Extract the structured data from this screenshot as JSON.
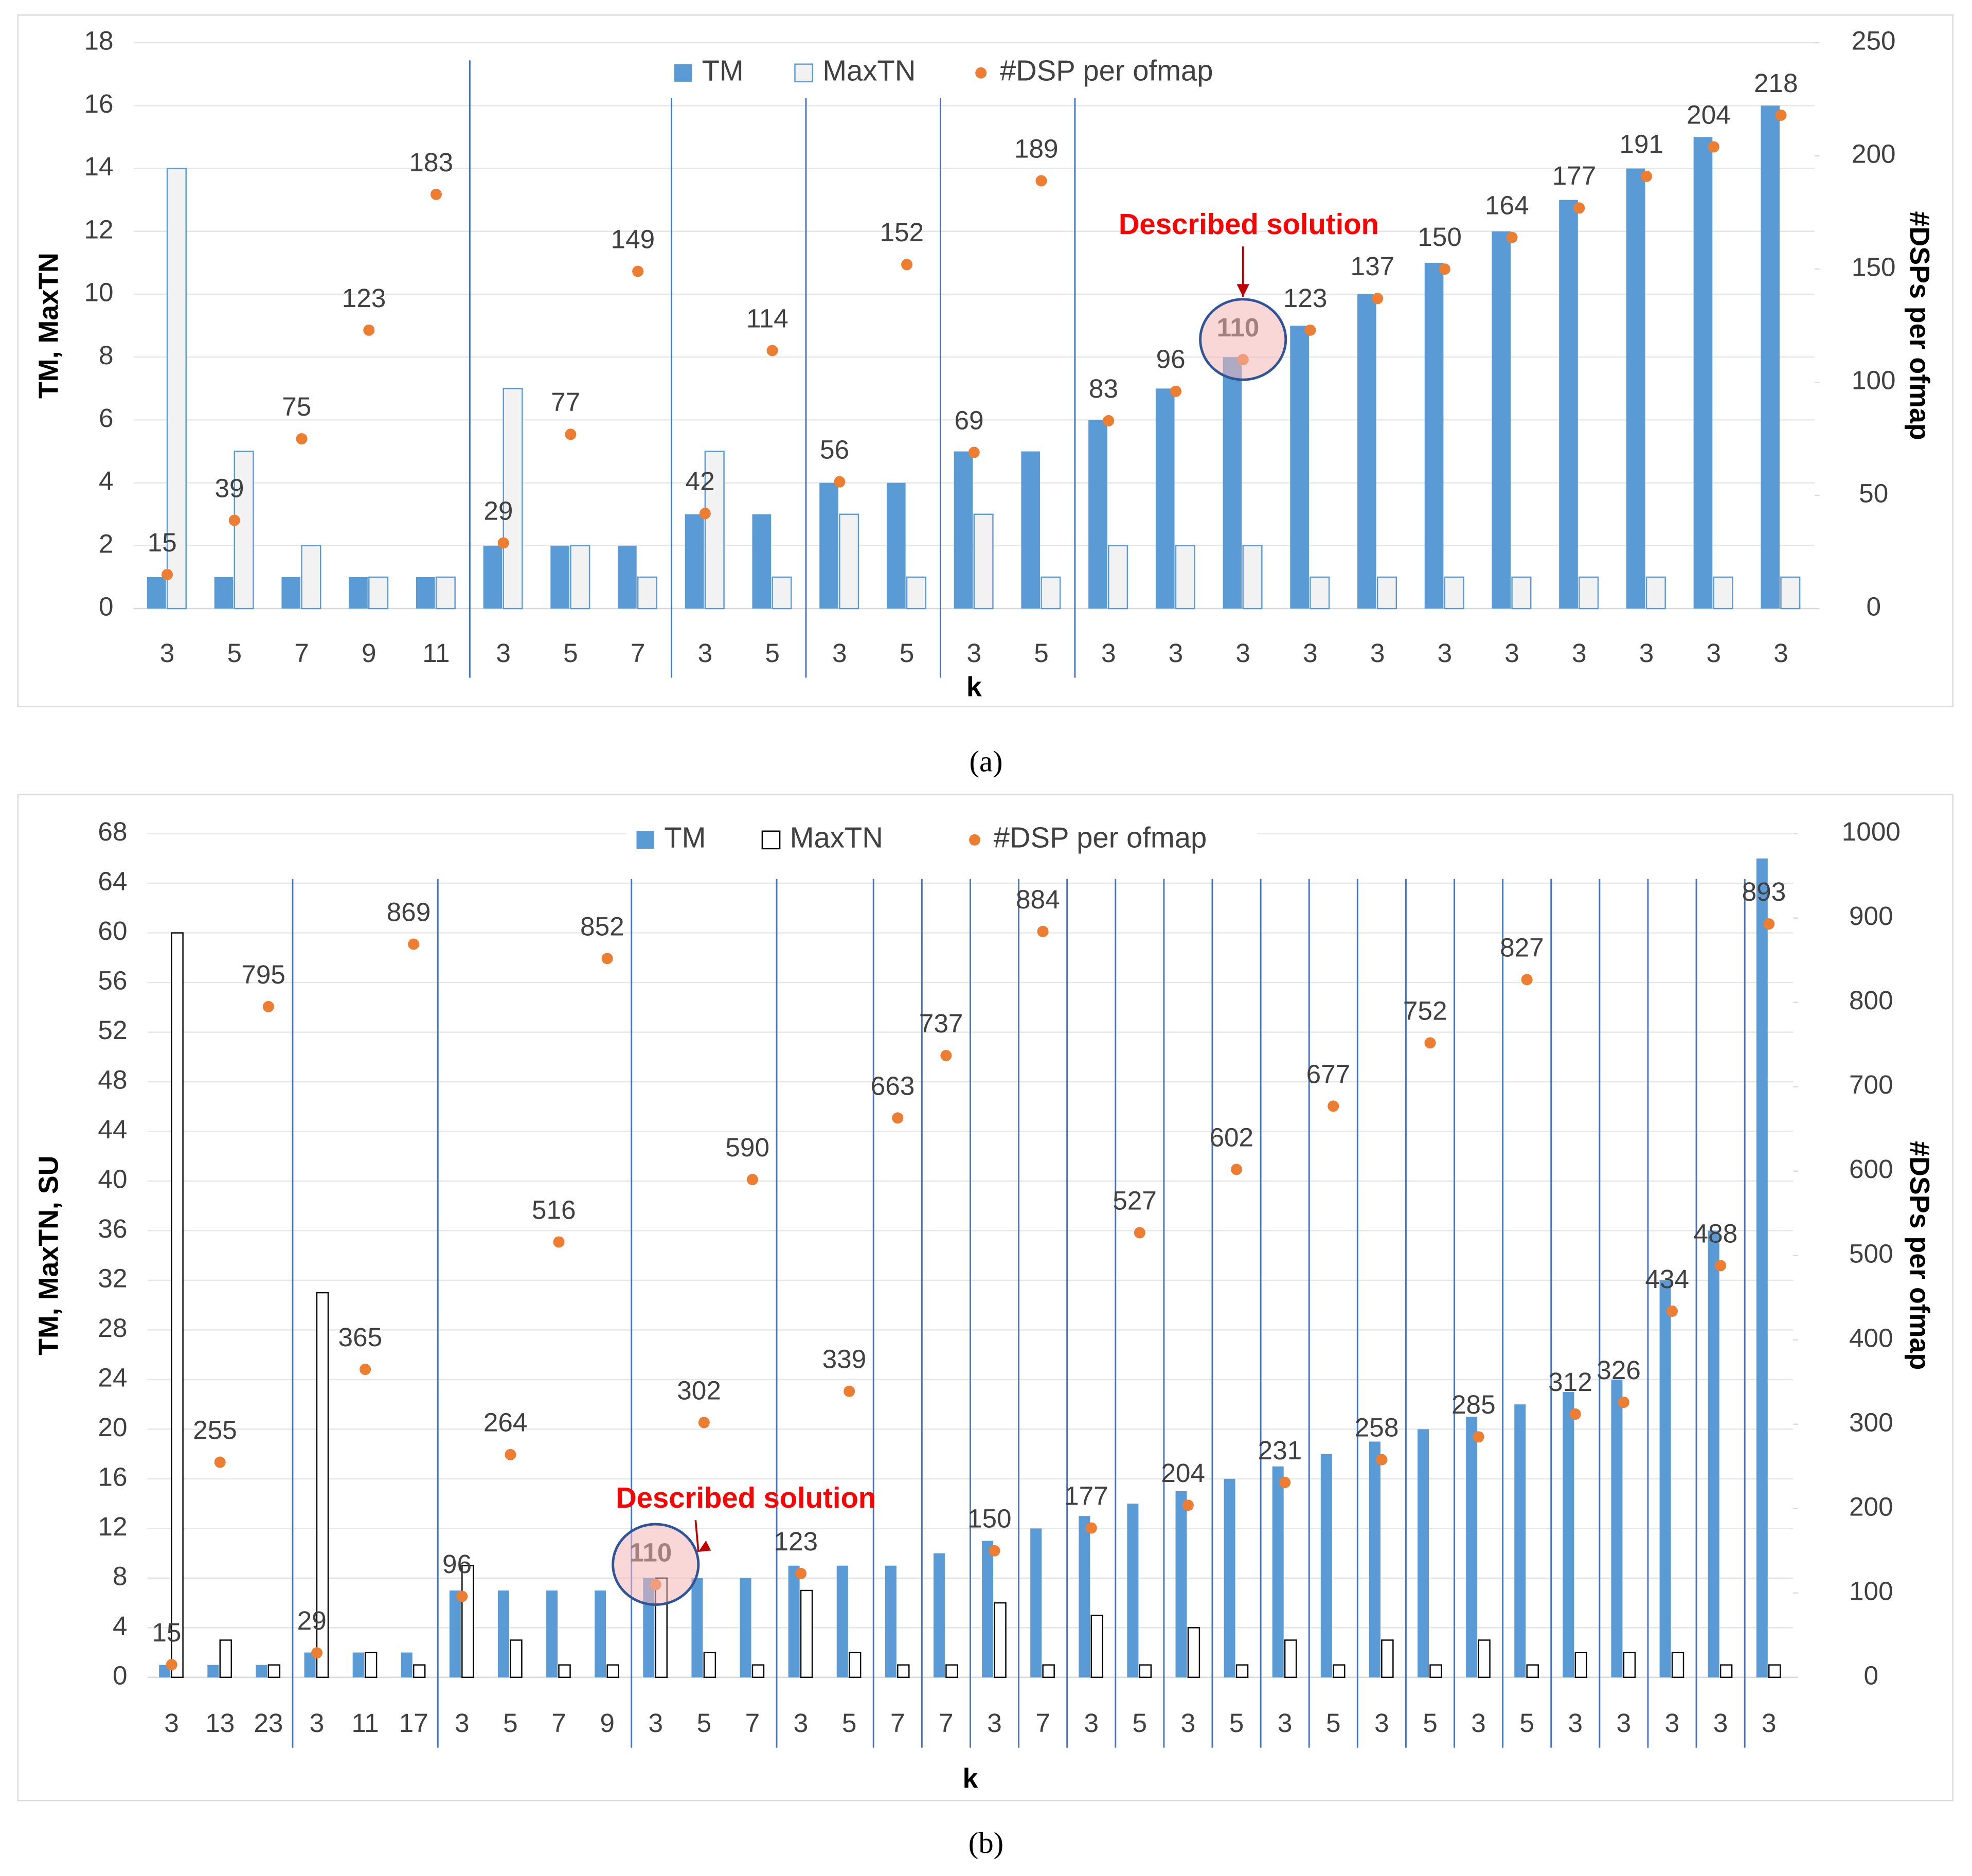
{
  "chart_data": [
    {
      "type": "bar",
      "xlabel": "k",
      "ylabel": "TM, MaxTN",
      "y2label": "#DSPs per ofmap",
      "caption": "(a)",
      "annotation": "Described solution",
      "categories": [
        "3",
        "5",
        "7",
        "9",
        "11",
        "3",
        "5",
        "7",
        "3",
        "5",
        "3",
        "5",
        "3",
        "5",
        "3",
        "3",
        "3",
        "3",
        "3",
        "3",
        "3",
        "3",
        "3",
        "3",
        "3"
      ],
      "series": [
        {
          "name": "TM",
          "type": "bar",
          "color": "#5b9bd5",
          "values": [
            1,
            1,
            1,
            1,
            1,
            2,
            2,
            2,
            3,
            3,
            4,
            4,
            5,
            5,
            6,
            7,
            8,
            9,
            10,
            11,
            12,
            13,
            14,
            15,
            16
          ]
        },
        {
          "name": "MaxTN",
          "type": "bar",
          "color": "#f2f2f2",
          "stroke": "#5b9bd5",
          "values": [
            14,
            5,
            2,
            1,
            1,
            7,
            2,
            1,
            5,
            1,
            3,
            1,
            3,
            1,
            2,
            2,
            2,
            1,
            1,
            1,
            1,
            1,
            1,
            1,
            1
          ]
        },
        {
          "name": "#DSP per ofmap",
          "type": "scatter",
          "axis": "y2",
          "color": "#ed7d31",
          "values": [
            15,
            39,
            75,
            123,
            183,
            29,
            77,
            149,
            42,
            114,
            56,
            152,
            69,
            189,
            83,
            96,
            110,
            123,
            137,
            150,
            164,
            177,
            191,
            204,
            218
          ]
        }
      ],
      "group_breaks": [
        4,
        7,
        9,
        11,
        13
      ],
      "ylim": [
        0,
        18
      ],
      "yticks": [
        0,
        2,
        4,
        6,
        8,
        10,
        12,
        14,
        16,
        18
      ],
      "y2lim": [
        0,
        250
      ],
      "y2ticks": [
        0,
        50,
        100,
        150,
        200,
        250
      ],
      "grid": true,
      "legend": "top"
    },
    {
      "type": "bar",
      "xlabel": "k",
      "ylabel": "TM, MaxTN, SU",
      "y2label": "#DSPs per ofmap",
      "caption": "(b)",
      "annotation": "Described solution",
      "categories": [
        "3",
        "13",
        "23",
        "3",
        "11",
        "17",
        "3",
        "5",
        "7",
        "9",
        "3",
        "5",
        "7",
        "3",
        "5",
        "7",
        "7",
        "3",
        "7",
        "3",
        "5",
        "3",
        "5",
        "3",
        "5",
        "3",
        "5",
        "3",
        "5",
        "3",
        "3",
        "3",
        "3",
        "3"
      ],
      "series": [
        {
          "name": "TM",
          "type": "bar",
          "color": "#5b9bd5",
          "values": [
            1,
            1,
            1,
            2,
            2,
            2,
            7,
            7,
            7,
            7,
            8,
            8,
            8,
            9,
            9,
            9,
            10,
            11,
            12,
            13,
            14,
            15,
            16,
            17,
            18,
            19,
            20,
            21,
            22,
            23,
            24,
            32,
            36,
            66
          ]
        },
        {
          "name": "MaxTN",
          "type": "bar",
          "color": "#ffffff",
          "stroke": "#000000",
          "values": [
            60,
            3,
            1,
            31,
            2,
            1,
            9,
            3,
            1,
            1,
            8,
            2,
            1,
            7,
            2,
            1,
            1,
            6,
            1,
            5,
            1,
            4,
            1,
            3,
            1,
            3,
            1,
            3,
            1,
            2,
            2,
            2,
            1,
            1
          ]
        },
        {
          "name": "#DSP per ofmap",
          "type": "scatter",
          "axis": "y2",
          "color": "#ed7d31",
          "values": [
            15,
            255,
            795,
            29,
            365,
            869,
            96,
            264,
            516,
            852,
            110,
            302,
            590,
            123,
            339,
            663,
            737,
            150,
            884,
            177,
            527,
            204,
            602,
            231,
            677,
            258,
            752,
            285,
            827,
            312,
            326,
            434,
            488,
            893
          ]
        }
      ],
      "group_breaks": [
        2,
        5,
        9,
        12,
        14,
        15,
        16,
        17,
        18,
        19,
        20,
        21,
        22,
        23,
        24,
        25,
        26,
        27,
        28,
        29,
        30,
        31,
        32
      ],
      "ylim": [
        0,
        68
      ],
      "yticks": [
        0,
        4,
        8,
        12,
        16,
        20,
        24,
        28,
        32,
        36,
        40,
        44,
        48,
        52,
        56,
        60,
        64,
        68
      ],
      "y2lim": [
        0,
        1000
      ],
      "y2ticks": [
        0,
        100,
        200,
        300,
        400,
        500,
        600,
        700,
        800,
        900,
        1000
      ],
      "grid": true,
      "legend": "top"
    }
  ]
}
